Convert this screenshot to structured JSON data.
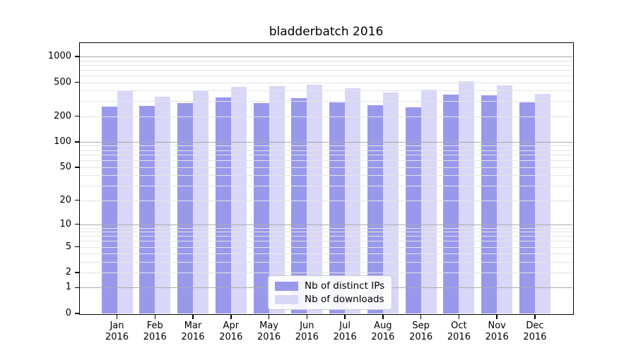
{
  "title": "bladderbatch 2016",
  "colors": {
    "background": "#ffffff",
    "axis": "#000000",
    "grid_major": "#ababab",
    "grid_minor": "#e4e4e4",
    "legend_border": "#cccccc",
    "distinct_ips": "#9999ec",
    "downloads": "#d8d7f7"
  },
  "legend": {
    "items": [
      {
        "key": "ips",
        "label": "Nb of distinct IPs"
      },
      {
        "key": "downloads",
        "label": "Nb of downloads"
      }
    ]
  },
  "chart_data": {
    "type": "bar",
    "title": "bladderbatch 2016",
    "scale": "log1p",
    "xlabel": "",
    "ylabel": "",
    "categories": [
      "Jan",
      "Feb",
      "Mar",
      "Apr",
      "May",
      "Jun",
      "Jul",
      "Aug",
      "Sep",
      "Oct",
      "Nov",
      "Dec"
    ],
    "x_year_label": "2016",
    "y_ticks": [
      0,
      1,
      2,
      5,
      10,
      20,
      50,
      100,
      200,
      500,
      1000
    ],
    "ylim": [
      0,
      1430
    ],
    "grid": "horizontal: major at powers of 10, log minor lines, drawn over bars",
    "legend_position": "lower center",
    "series": [
      {
        "key": "ips",
        "name": "Nb of distinct IPs",
        "color": "#9999ec",
        "values": [
          261,
          262,
          284,
          333,
          283,
          324,
          291,
          268,
          253,
          358,
          352,
          291
        ]
      },
      {
        "key": "downloads",
        "name": "Nb of downloads",
        "color": "#d8d7f7",
        "values": [
          394,
          338,
          399,
          439,
          452,
          470,
          428,
          377,
          406,
          518,
          456,
          363
        ]
      }
    ]
  }
}
